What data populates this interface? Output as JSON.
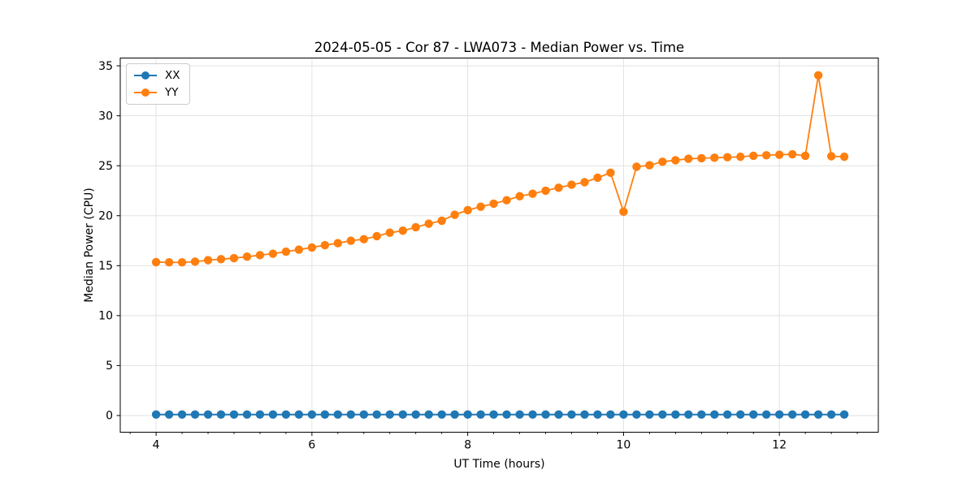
{
  "chart_data": {
    "type": "line",
    "title": "2024-05-05 - Cor 87 - LWA073 - Median Power vs. Time",
    "xlabel": "UT Time (hours)",
    "ylabel": "Median Power (CPU)",
    "xlim": [
      3.54,
      13.27
    ],
    "ylim": [
      -1.67,
      35.78
    ],
    "x_ticks": [
      4,
      6,
      8,
      10,
      12
    ],
    "x_minor_tick_step": 0.33333,
    "y_ticks": [
      0,
      5,
      10,
      15,
      20,
      25,
      30,
      35
    ],
    "grid": true,
    "grid_color": "#e2e2e2",
    "legend_position": "upper-left",
    "x": [
      4.0,
      4.167,
      4.333,
      4.5,
      4.667,
      4.833,
      5.0,
      5.167,
      5.333,
      5.5,
      5.667,
      5.833,
      6.0,
      6.167,
      6.333,
      6.5,
      6.667,
      6.833,
      7.0,
      7.167,
      7.333,
      7.5,
      7.667,
      7.833,
      8.0,
      8.167,
      8.333,
      8.5,
      8.667,
      8.833,
      9.0,
      9.167,
      9.333,
      9.5,
      9.667,
      9.833,
      10.0,
      10.167,
      10.333,
      10.5,
      10.667,
      10.833,
      11.0,
      11.167,
      11.333,
      11.5,
      11.667,
      11.833,
      12.0,
      12.167,
      12.333,
      12.5,
      12.667,
      12.833
    ],
    "series": [
      {
        "name": "XX",
        "color": "#1f77b4",
        "marker": "circle",
        "values": [
          0.1,
          0.1,
          0.1,
          0.1,
          0.1,
          0.1,
          0.1,
          0.1,
          0.1,
          0.1,
          0.1,
          0.1,
          0.1,
          0.1,
          0.1,
          0.1,
          0.1,
          0.1,
          0.1,
          0.1,
          0.1,
          0.1,
          0.1,
          0.1,
          0.1,
          0.1,
          0.1,
          0.1,
          0.1,
          0.1,
          0.1,
          0.1,
          0.1,
          0.1,
          0.1,
          0.1,
          0.1,
          0.1,
          0.1,
          0.1,
          0.1,
          0.1,
          0.1,
          0.1,
          0.1,
          0.1,
          0.1,
          0.1,
          0.1,
          0.1,
          0.1,
          0.1,
          0.1,
          0.1
        ]
      },
      {
        "name": "YY",
        "color": "#ff7f0e",
        "marker": "circle",
        "values": [
          15.35,
          15.33,
          15.33,
          15.4,
          15.55,
          15.65,
          15.75,
          15.9,
          16.05,
          16.2,
          16.4,
          16.6,
          16.82,
          17.05,
          17.25,
          17.5,
          17.65,
          17.95,
          18.3,
          18.5,
          18.85,
          19.2,
          19.5,
          20.1,
          20.55,
          20.9,
          21.2,
          21.55,
          21.95,
          22.2,
          22.5,
          22.8,
          23.1,
          23.35,
          23.8,
          24.3,
          20.4,
          24.9,
          25.05,
          25.4,
          25.55,
          25.7,
          25.75,
          25.8,
          25.85,
          25.9,
          26.0,
          26.05,
          26.1,
          26.15,
          26.0,
          34.05,
          25.95,
          25.9
        ]
      }
    ]
  },
  "style": {
    "background": "#ffffff",
    "spine_color": "#000000",
    "text_color": "#000000",
    "legend_border_color": "#cccccc"
  }
}
